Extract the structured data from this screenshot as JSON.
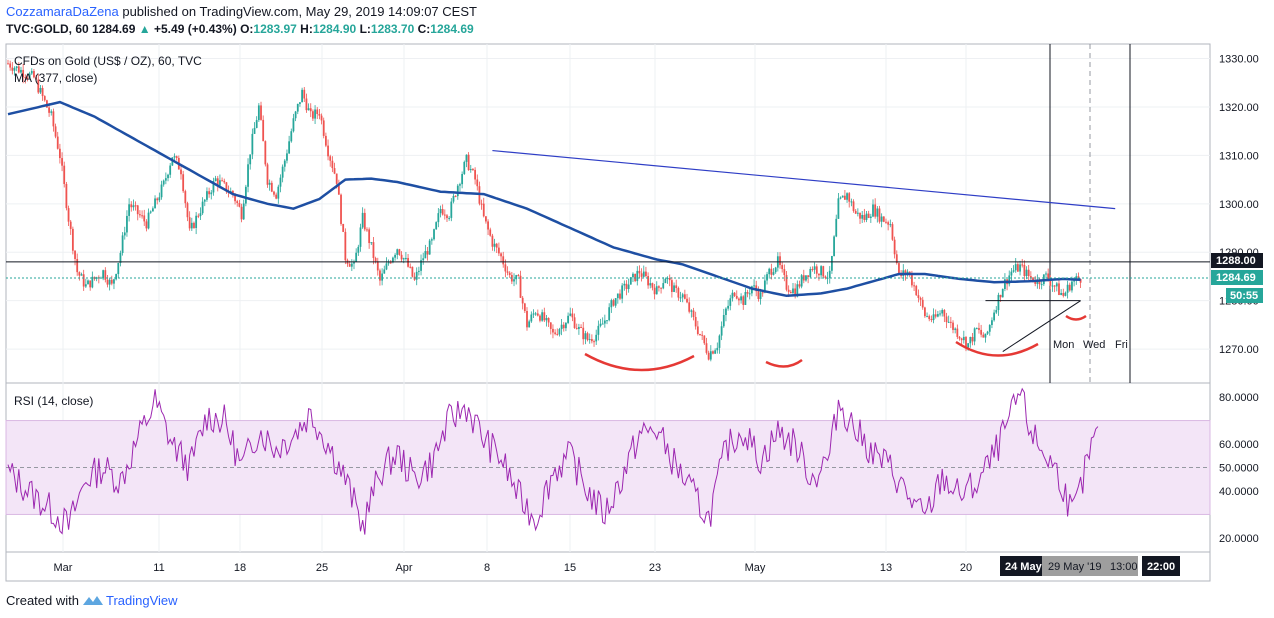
{
  "header": {
    "author": "CozzamaraDaZena",
    "published": "published on TradingView.com, May 29, 2019 14:09:07 CEST",
    "symbol": "TVC:GOLD, 60",
    "last": "1284.69",
    "change": "+5.49 (+0.43%)",
    "o_label": "O:",
    "o": "1283.97",
    "h_label": "H:",
    "h": "1284.90",
    "l_label": "L:",
    "l": "1283.70",
    "c_label": "C:",
    "c": "1284.69"
  },
  "chart_data": [
    {
      "type": "line",
      "title": "CFDs on Gold (US$ / OZ), 60, TVC",
      "indicator_label": "MA (377, close)",
      "ylim": [
        1263,
        1333
      ],
      "yticks": [
        1270,
        1280,
        1290,
        1300,
        1310,
        1320,
        1330
      ],
      "ytick_labels": [
        "1270.00",
        "1280.00",
        "1290.00",
        "1300.00",
        "1310.00",
        "1320.00",
        "1330.00"
      ],
      "x_labels": [
        "Mar",
        "11",
        "18",
        "25",
        "Apr",
        "8",
        "15",
        "23",
        "May",
        "13",
        "20"
      ],
      "series": [
        {
          "type": "candlestick",
          "close_path": [
            [
              0,
              1329
            ],
            [
              3,
              1326
            ],
            [
              5,
              1318
            ],
            [
              6,
              1310
            ],
            [
              7,
              1297
            ],
            [
              8,
              1286
            ],
            [
              9,
              1283
            ],
            [
              11,
              1286
            ],
            [
              12,
              1283
            ],
            [
              13,
              1290
            ],
            [
              14,
              1300
            ],
            [
              16,
              1296
            ],
            [
              18,
              1304
            ],
            [
              19,
              1310
            ],
            [
              20,
              1307
            ],
            [
              21,
              1294
            ],
            [
              22,
              1298
            ],
            [
              24,
              1305
            ],
            [
              26,
              1302
            ],
            [
              27,
              1298
            ],
            [
              28,
              1311
            ],
            [
              29,
              1320
            ],
            [
              30,
              1305
            ],
            [
              31,
              1302
            ],
            [
              32,
              1309
            ],
            [
              33,
              1317
            ],
            [
              34,
              1323
            ],
            [
              35,
              1318
            ],
            [
              36,
              1319
            ],
            [
              37,
              1311
            ],
            [
              38,
              1305
            ],
            [
              39,
              1289
            ],
            [
              40,
              1287
            ],
            [
              41,
              1297
            ],
            [
              42,
              1291
            ],
            [
              43,
              1284
            ],
            [
              44,
              1288
            ],
            [
              45,
              1291
            ],
            [
              46,
              1288
            ],
            [
              47,
              1284
            ],
            [
              48,
              1289
            ],
            [
              49,
              1292
            ],
            [
              50,
              1299
            ],
            [
              51,
              1298
            ],
            [
              52,
              1304
            ],
            [
              53,
              1309
            ],
            [
              54,
              1305
            ],
            [
              55,
              1297
            ],
            [
              56,
              1292
            ],
            [
              57,
              1289
            ],
            [
              58,
              1285
            ],
            [
              59,
              1284
            ],
            [
              60,
              1275
            ],
            [
              61,
              1278
            ],
            [
              62,
              1276
            ],
            [
              63,
              1273
            ],
            [
              64,
              1275
            ],
            [
              65,
              1277
            ],
            [
              66,
              1274
            ],
            [
              67,
              1272
            ],
            [
              68,
              1273
            ],
            [
              69,
              1276
            ],
            [
              70,
              1280
            ],
            [
              71,
              1282
            ],
            [
              72,
              1284
            ],
            [
              73,
              1286
            ],
            [
              74,
              1284
            ],
            [
              75,
              1282
            ],
            [
              76,
              1285
            ],
            [
              77,
              1282
            ],
            [
              78,
              1281
            ],
            [
              79,
              1277
            ],
            [
              80,
              1273
            ],
            [
              81,
              1269
            ],
            [
              82,
              1271
            ],
            [
              83,
              1278
            ],
            [
              84,
              1282
            ],
            [
              85,
              1280
            ],
            [
              86,
              1283
            ],
            [
              87,
              1281
            ],
            [
              88,
              1286
            ],
            [
              89,
              1288
            ],
            [
              90,
              1283
            ],
            [
              91,
              1282
            ],
            [
              92,
              1285
            ],
            [
              93,
              1287
            ],
            [
              94,
              1286
            ],
            [
              95,
              1285
            ],
            [
              96,
              1300
            ],
            [
              97,
              1302
            ],
            [
              98,
              1298
            ],
            [
              99,
              1297
            ],
            [
              100,
              1299
            ],
            [
              101,
              1297
            ],
            [
              102,
              1296
            ],
            [
              103,
              1285
            ],
            [
              104,
              1286
            ],
            [
              105,
              1282
            ],
            [
              106,
              1277
            ],
            [
              107,
              1276
            ],
            [
              108,
              1278
            ],
            [
              109,
              1275
            ],
            [
              110,
              1273
            ],
            [
              111,
              1271
            ],
            [
              112,
              1274
            ],
            [
              113,
              1272
            ],
            [
              114,
              1278
            ],
            [
              115,
              1283
            ],
            [
              116,
              1286
            ],
            [
              117,
              1287
            ],
            [
              118,
              1285
            ],
            [
              119,
              1284
            ],
            [
              120,
              1285
            ],
            [
              121,
              1283
            ],
            [
              122,
              1281
            ],
            [
              123,
              1284
            ],
            [
              124,
              1284.69
            ]
          ]
        },
        {
          "name": "MA (377, close)",
          "type": "line",
          "points": [
            [
              0,
              1318.5
            ],
            [
              6,
              1321
            ],
            [
              10,
              1318
            ],
            [
              14,
              1314
            ],
            [
              18,
              1310
            ],
            [
              22,
              1306
            ],
            [
              26,
              1302
            ],
            [
              30,
              1300
            ],
            [
              33,
              1299
            ],
            [
              36,
              1301
            ],
            [
              39,
              1305
            ],
            [
              42,
              1305.2
            ],
            [
              45,
              1304.5
            ],
            [
              50,
              1302.5
            ],
            [
              55,
              1302
            ],
            [
              60,
              1299
            ],
            [
              65,
              1295
            ],
            [
              70,
              1291
            ],
            [
              75,
              1288.5
            ],
            [
              78,
              1287.5
            ],
            [
              82,
              1285
            ],
            [
              86,
              1282.5
            ],
            [
              90,
              1281
            ],
            [
              94,
              1281.5
            ],
            [
              97,
              1282.5
            ],
            [
              100,
              1284
            ],
            [
              103,
              1285.5
            ],
            [
              106,
              1285.5
            ],
            [
              110,
              1284.5
            ],
            [
              114,
              1283.8
            ],
            [
              118,
              1284
            ],
            [
              122,
              1284.5
            ],
            [
              124,
              1284.3
            ]
          ]
        }
      ],
      "annotations": {
        "resistance_level_label": "1288.00",
        "last_price_label": "1284.69",
        "countdown_label": "50:55",
        "trendline_points": [
          [
            56,
            1311
          ],
          [
            128,
            1299
          ]
        ],
        "neckline_points": [
          [
            115,
            1269.5
          ],
          [
            124,
            1280
          ]
        ],
        "horizontal_line_points": [
          [
            113,
            1280
          ],
          [
            124,
            1280
          ]
        ],
        "future_labels": [
          "Mon",
          "Wed",
          "Fri"
        ]
      }
    },
    {
      "type": "line",
      "title": "RSI (14, close)",
      "ylim": [
        14,
        86
      ],
      "yticks": [
        20,
        40,
        50,
        60,
        80
      ],
      "ytick_labels": [
        "20.0000",
        "40.0000",
        "50.0000",
        "60.0000",
        "80.0000"
      ],
      "band": [
        30,
        70
      ],
      "midline": 50,
      "series": [
        {
          "name": "RSI",
          "points": [
            [
              0,
              48
            ],
            [
              3,
              38
            ],
            [
              5,
              32
            ],
            [
              7,
              25
            ],
            [
              9,
              45
            ],
            [
              11,
              50
            ],
            [
              13,
              44
            ],
            [
              15,
              62
            ],
            [
              17,
              78
            ],
            [
              19,
              60
            ],
            [
              21,
              50
            ],
            [
              23,
              72
            ],
            [
              25,
              70
            ],
            [
              27,
              50
            ],
            [
              29,
              66
            ],
            [
              31,
              58
            ],
            [
              33,
              64
            ],
            [
              35,
              73
            ],
            [
              37,
              60
            ],
            [
              39,
              45
            ],
            [
              41,
              25
            ],
            [
              43,
              48
            ],
            [
              45,
              56
            ],
            [
              47,
              45
            ],
            [
              49,
              52
            ],
            [
              51,
              70
            ],
            [
              53,
              76
            ],
            [
              55,
              62
            ],
            [
              57,
              54
            ],
            [
              59,
              38
            ],
            [
              61,
              28
            ],
            [
              63,
              48
            ],
            [
              65,
              55
            ],
            [
              67,
              40
            ],
            [
              69,
              30
            ],
            [
              71,
              46
            ],
            [
              73,
              64
            ],
            [
              75,
              66
            ],
            [
              77,
              52
            ],
            [
              79,
              40
            ],
            [
              81,
              28
            ],
            [
              83,
              58
            ],
            [
              85,
              66
            ],
            [
              87,
              53
            ],
            [
              89,
              65
            ],
            [
              91,
              60
            ],
            [
              93,
              45
            ],
            [
              95,
              55
            ],
            [
              96,
              78
            ],
            [
              98,
              66
            ],
            [
              100,
              56
            ],
            [
              102,
              50
            ],
            [
              104,
              38
            ],
            [
              106,
              28
            ],
            [
              108,
              46
            ],
            [
              110,
              38
            ],
            [
              112,
              43
            ],
            [
              114,
              55
            ],
            [
              116,
              72
            ],
            [
              117,
              82
            ],
            [
              118,
              68
            ],
            [
              119,
              60
            ],
            [
              121,
              50
            ],
            [
              122,
              42
            ],
            [
              123,
              30
            ],
            [
              124,
              40
            ],
            [
              125,
              56
            ],
            [
              126,
              64
            ]
          ]
        }
      ]
    }
  ],
  "time_axis": {
    "markers": [
      "24 May",
      "29 May '19",
      "13:00",
      "22:00"
    ]
  },
  "footer": {
    "created_with": "Created with",
    "brand": "TradingView"
  },
  "colors": {
    "up": "#26a69a",
    "down": "#ef5350",
    "ma": "#1e4fa3",
    "trendline": "#2f3ec6",
    "rsi": "#9c27b0",
    "rsi_band": "#f3e5f7",
    "arc": "#e53935"
  }
}
